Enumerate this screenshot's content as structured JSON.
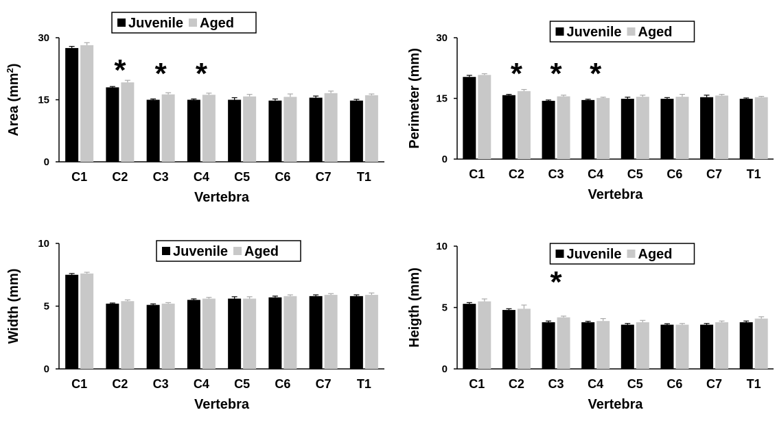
{
  "chart_data": [
    {
      "type": "bar",
      "ylabel": "Area (mm²)",
      "ylabel_main": "Area (mm",
      "ylabel_sup": "2",
      "ylabel_tail": ")",
      "xlabel": "Vertebra",
      "categories": [
        "C1",
        "C2",
        "C3",
        "C4",
        "C5",
        "C6",
        "C7",
        "T1"
      ],
      "ylim": [
        0,
        30
      ],
      "yticks": [
        "0",
        "15",
        "30"
      ],
      "series": [
        {
          "name": "Juvenile",
          "color": "#000000",
          "values": [
            27.5,
            18.0,
            15.0,
            15.0,
            15.0,
            14.8,
            15.5,
            14.8
          ],
          "errors": [
            0.4,
            0.2,
            0.2,
            0.2,
            0.5,
            0.4,
            0.4,
            0.3
          ]
        },
        {
          "name": "Aged",
          "color": "#c8c8c8",
          "values": [
            28.2,
            19.2,
            16.3,
            16.2,
            15.8,
            15.7,
            16.6,
            16.1
          ],
          "errors": [
            0.6,
            0.5,
            0.4,
            0.4,
            0.5,
            0.7,
            0.5,
            0.3
          ]
        }
      ],
      "significance": [
        "",
        "*",
        "*",
        "*",
        "",
        "",
        "",
        ""
      ],
      "legend_position": "top-center",
      "legend_offset": -55
    },
    {
      "type": "bar",
      "ylabel": "Perimeter (mm)",
      "xlabel": "Vertebra",
      "categories": [
        "C1",
        "C2",
        "C3",
        "C4",
        "C5",
        "C6",
        "C7",
        "T1"
      ],
      "ylim": [
        0,
        30
      ],
      "yticks": [
        "0",
        "15",
        "30"
      ],
      "series": [
        {
          "name": "Juvenile",
          "color": "#000000",
          "values": [
            20.3,
            15.8,
            14.4,
            14.6,
            14.9,
            14.9,
            15.3,
            14.9
          ],
          "errors": [
            0.4,
            0.2,
            0.2,
            0.2,
            0.4,
            0.3,
            0.5,
            0.2
          ]
        },
        {
          "name": "Aged",
          "color": "#c8c8c8",
          "values": [
            20.8,
            16.8,
            15.5,
            15.1,
            15.4,
            15.4,
            15.7,
            15.3
          ],
          "errors": [
            0.3,
            0.4,
            0.3,
            0.2,
            0.4,
            0.6,
            0.3,
            0.2
          ]
        }
      ],
      "significance": [
        "",
        "*",
        "*",
        "*",
        "",
        "",
        "",
        ""
      ],
      "legend_position": "top-center",
      "legend_offset": 10
    },
    {
      "type": "bar",
      "ylabel": "Width (mm)",
      "xlabel": "Vertebra",
      "categories": [
        "C1",
        "C2",
        "C3",
        "C4",
        "C5",
        "C6",
        "C7",
        "T1"
      ],
      "ylim": [
        0,
        10
      ],
      "yticks": [
        "0",
        "5",
        "10"
      ],
      "series": [
        {
          "name": "Juvenile",
          "color": "#000000",
          "values": [
            7.5,
            5.2,
            5.1,
            5.5,
            5.6,
            5.7,
            5.8,
            5.8
          ],
          "errors": [
            0.1,
            0.05,
            0.08,
            0.08,
            0.15,
            0.1,
            0.1,
            0.1
          ]
        },
        {
          "name": "Aged",
          "color": "#c8c8c8",
          "values": [
            7.6,
            5.4,
            5.2,
            5.6,
            5.6,
            5.8,
            5.9,
            5.9
          ],
          "errors": [
            0.1,
            0.1,
            0.08,
            0.1,
            0.15,
            0.1,
            0.1,
            0.15
          ]
        }
      ],
      "significance": [
        "",
        "",
        "",
        "",
        "",
        "",
        "",
        ""
      ],
      "legend_position": "top-center",
      "legend_offset": 10
    },
    {
      "type": "bar",
      "ylabel": "Heigth (mm)",
      "xlabel": "Vertebra",
      "categories": [
        "C1",
        "C2",
        "C3",
        "C4",
        "C5",
        "C6",
        "C7",
        "T1"
      ],
      "ylim": [
        0,
        10
      ],
      "yticks": [
        "0",
        "5",
        "10"
      ],
      "series": [
        {
          "name": "Juvenile",
          "color": "#000000",
          "values": [
            5.3,
            4.8,
            3.8,
            3.8,
            3.6,
            3.6,
            3.6,
            3.8
          ],
          "errors": [
            0.1,
            0.1,
            0.1,
            0.08,
            0.1,
            0.08,
            0.1,
            0.1
          ]
        },
        {
          "name": "Aged",
          "color": "#c8c8c8",
          "values": [
            5.5,
            4.9,
            4.2,
            3.9,
            3.8,
            3.6,
            3.8,
            4.1
          ],
          "errors": [
            0.2,
            0.3,
            0.1,
            0.2,
            0.15,
            0.1,
            0.1,
            0.15
          ]
        }
      ],
      "significance": [
        "",
        "",
        "*",
        "",
        "",
        "",
        "",
        ""
      ],
      "legend_position": "top-center",
      "legend_offset": 10
    }
  ]
}
